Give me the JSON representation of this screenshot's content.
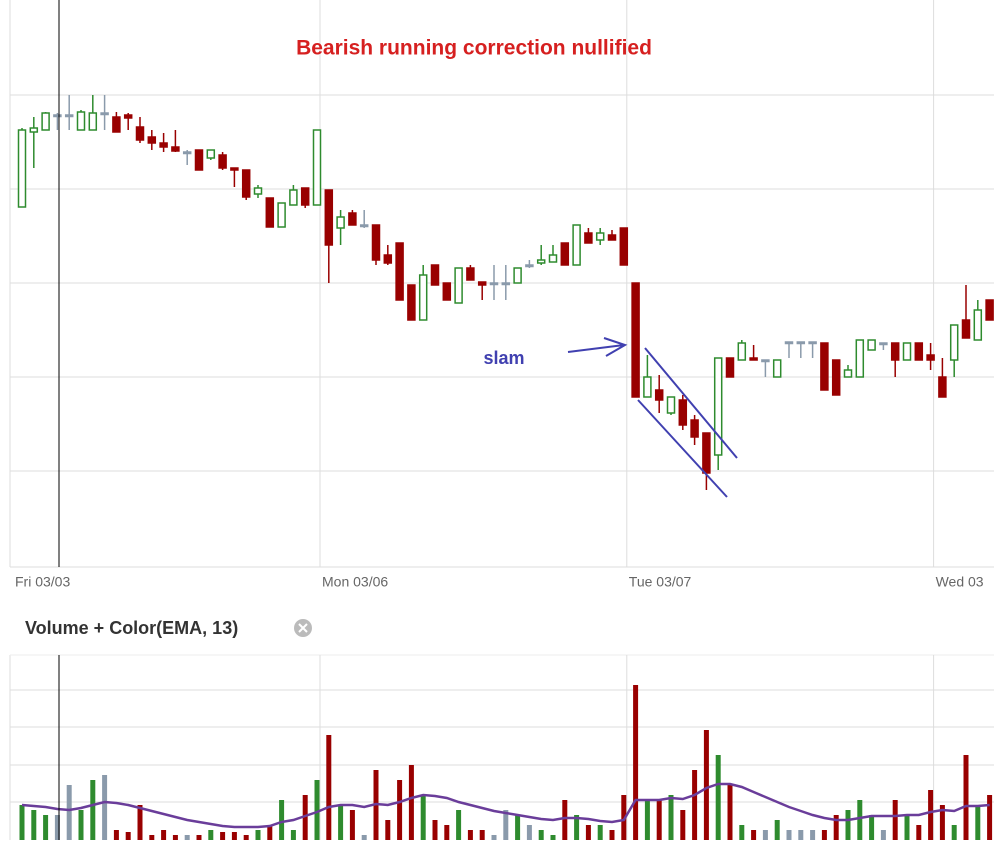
{
  "chart_data": [
    {
      "type": "candlestick",
      "title": "Bearish running correction nullified",
      "annotations": [
        "slam"
      ],
      "categories": [
        "Fri 03/03",
        null,
        null,
        null,
        null,
        null,
        null,
        null,
        null,
        null,
        null,
        null,
        null,
        null,
        null,
        null,
        null,
        null,
        null,
        null,
        null,
        null,
        null,
        null,
        null,
        "Mon 03/06",
        null,
        null,
        null,
        null,
        null,
        null,
        null,
        null,
        null,
        null,
        null,
        null,
        null,
        null,
        null,
        null,
        null,
        null,
        null,
        null,
        null,
        null,
        null,
        null,
        null,
        "Tue 03/07",
        null,
        null,
        null,
        null,
        null,
        null,
        null,
        null,
        null,
        null,
        null,
        null,
        null,
        null,
        null,
        null,
        null,
        null,
        null,
        null,
        null,
        null,
        null,
        null,
        null,
        "Wed 03",
        null,
        null,
        null,
        null,
        null
      ],
      "open": [
        358,
        433,
        435,
        450,
        450,
        435,
        435,
        452,
        448,
        450,
        438,
        428,
        422,
        418,
        413,
        415,
        407,
        410,
        397,
        395,
        371,
        367,
        338,
        360,
        377,
        360,
        375,
        337,
        352,
        340,
        340,
        310,
        322,
        280,
        245,
        300,
        282,
        262,
        297,
        283,
        282,
        282,
        282,
        300,
        302,
        303,
        322,
        300,
        332,
        325,
        330,
        337,
        282,
        168,
        175,
        152,
        165,
        145,
        132,
        110,
        207,
        205,
        207,
        205,
        188,
        223,
        223,
        223,
        222,
        205,
        188,
        188,
        215,
        222,
        222,
        205,
        222,
        210,
        188,
        205,
        245,
        225,
        265
      ],
      "high": [
        437,
        448,
        453,
        452,
        470,
        455,
        470,
        470,
        453,
        452,
        448,
        435,
        432,
        435,
        415,
        415,
        415,
        413,
        397,
        395,
        380,
        367,
        362,
        380,
        377,
        435,
        375,
        355,
        355,
        355,
        340,
        320,
        322,
        280,
        300,
        300,
        282,
        297,
        300,
        283,
        300,
        300,
        297,
        305,
        320,
        320,
        322,
        340,
        337,
        337,
        335,
        337,
        282,
        210,
        190,
        168,
        170,
        150,
        132,
        207,
        207,
        225,
        220,
        205,
        205,
        223,
        223,
        223,
        222,
        205,
        200,
        225,
        225,
        222,
        222,
        222,
        222,
        222,
        207,
        240,
        280,
        265,
        265
      ],
      "low": [
        358,
        397,
        435,
        435,
        435,
        435,
        435,
        435,
        433,
        435,
        422,
        415,
        413,
        413,
        400,
        395,
        405,
        395,
        378,
        365,
        367,
        338,
        338,
        360,
        357,
        360,
        282,
        320,
        340,
        337,
        300,
        300,
        265,
        245,
        245,
        280,
        265,
        262,
        285,
        265,
        265,
        265,
        282,
        297,
        300,
        303,
        300,
        300,
        322,
        320,
        325,
        300,
        168,
        168,
        152,
        150,
        135,
        120,
        75,
        95,
        188,
        205,
        205,
        188,
        188,
        207,
        207,
        207,
        175,
        170,
        188,
        188,
        215,
        215,
        188,
        205,
        205,
        195,
        168,
        188,
        227,
        225,
        245
      ],
      "close": [
        435,
        437,
        452,
        450,
        450,
        453,
        452,
        452,
        433,
        447,
        425,
        422,
        418,
        414,
        413,
        395,
        415,
        397,
        395,
        368,
        377,
        338,
        362,
        375,
        360,
        435,
        320,
        348,
        340,
        340,
        305,
        302,
        265,
        245,
        290,
        280,
        265,
        297,
        285,
        280,
        282,
        282,
        297,
        300,
        305,
        310,
        300,
        340,
        322,
        332,
        325,
        300,
        168,
        188,
        165,
        168,
        140,
        128,
        92,
        207,
        188,
        222,
        205,
        205,
        205,
        223,
        223,
        223,
        175,
        170,
        195,
        225,
        225,
        222,
        205,
        222,
        205,
        205,
        168,
        240,
        227,
        255,
        245
      ],
      "ylim": [
        0,
        565
      ],
      "yticks": [
        94,
        188,
        282,
        376,
        470
      ],
      "grid": true,
      "up_color": "#2e8b2e",
      "down_color": "#990000",
      "flat_color": "#8a9aab"
    },
    {
      "type": "bar",
      "title": "Volume + Color(EMA, 13)",
      "values": [
        35,
        30,
        25,
        25,
        55,
        30,
        60,
        65,
        10,
        8,
        35,
        5,
        10,
        5,
        5,
        5,
        10,
        8,
        8,
        5,
        10,
        15,
        40,
        10,
        45,
        60,
        105,
        35,
        30,
        5,
        70,
        20,
        60,
        75,
        45,
        20,
        15,
        30,
        10,
        10,
        5,
        30,
        25,
        15,
        10,
        5,
        40,
        25,
        15,
        15,
        10,
        45,
        155,
        40,
        40,
        45,
        30,
        70,
        110,
        85,
        55,
        15,
        10,
        10,
        20,
        10,
        10,
        10,
        10,
        25,
        30,
        40,
        25,
        10,
        40,
        25,
        15,
        50,
        35,
        15,
        85,
        35,
        45
      ],
      "line": {
        "color": "#6a3d9a",
        "values": [
          35,
          34,
          33,
          31,
          30,
          32,
          35,
          38,
          37,
          35,
          32,
          29,
          26,
          23,
          20,
          18,
          16,
          14,
          13,
          13,
          13,
          14,
          18,
          20,
          24,
          28,
          33,
          35,
          35,
          33,
          36,
          35,
          38,
          42,
          45,
          44,
          42,
          38,
          35,
          32,
          29,
          27,
          25,
          23,
          21,
          20,
          22,
          22,
          21,
          19,
          18,
          20,
          40,
          40,
          40,
          42,
          41,
          45,
          52,
          56,
          56,
          53,
          48,
          43,
          38,
          33,
          29,
          25,
          22,
          20,
          20,
          22,
          24,
          24,
          24,
          25,
          25,
          28,
          30,
          29,
          34,
          34,
          35
        ]
      },
      "ylim": [
        0,
        185
      ],
      "yticks": [
        38,
        75,
        113,
        150
      ],
      "grid": true
    }
  ]
}
